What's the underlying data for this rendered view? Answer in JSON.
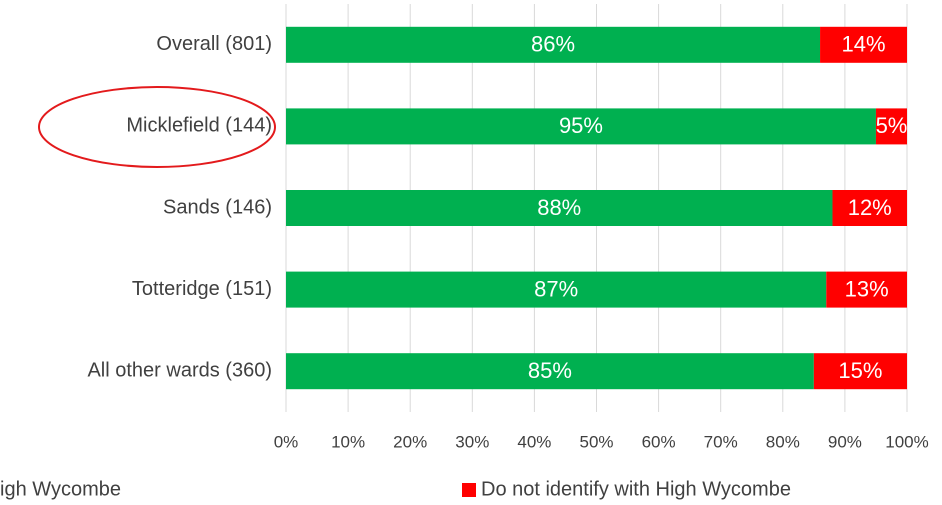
{
  "chart_data": {
    "type": "stacked_bar_horizontal",
    "categories": [
      "Overall (801)",
      "Micklefield (144)",
      "Sands (146)",
      "Totteridge (151)",
      "All other wards (360)"
    ],
    "series": [
      {
        "name": "igh Wycombe",
        "color": "#00b050",
        "values": [
          86,
          95,
          88,
          87,
          85
        ],
        "value_labels": [
          "86%",
          "95%",
          "88%",
          "87%",
          "85%"
        ]
      },
      {
        "name": "Do not identify with High Wycombe",
        "color": "#ff0000",
        "values": [
          14,
          5,
          12,
          13,
          15
        ],
        "value_labels": [
          "14%",
          "5%",
          "12%",
          "13%",
          "15%"
        ]
      }
    ],
    "xlim": [
      0,
      100
    ],
    "xticks": [
      {
        "value": 0,
        "label": "0%"
      },
      {
        "value": 10,
        "label": "10%"
      },
      {
        "value": 20,
        "label": "20%"
      },
      {
        "value": 30,
        "label": "30%"
      },
      {
        "value": 40,
        "label": "40%"
      },
      {
        "value": 50,
        "label": "50%"
      },
      {
        "value": 60,
        "label": "60%"
      },
      {
        "value": 70,
        "label": "70%"
      },
      {
        "value": 80,
        "label": "80%"
      },
      {
        "value": 90,
        "label": "90%"
      },
      {
        "value": 100,
        "label": "100%"
      }
    ],
    "grid": true,
    "legend": "bottom"
  }
}
